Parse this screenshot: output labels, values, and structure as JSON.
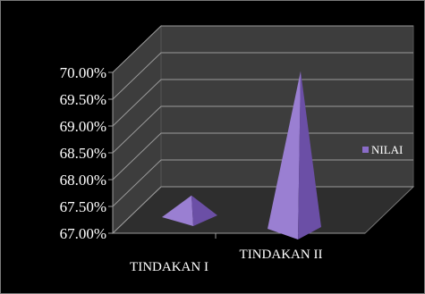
{
  "chart_data": {
    "type": "bar",
    "style": "3d-pyramid",
    "categories": [
      "TINDAKAN I",
      "TINDAKAN II"
    ],
    "series": [
      {
        "name": "NILAI",
        "values": [
          67.6,
          69.92
        ]
      }
    ],
    "ylim": [
      67.0,
      70.0
    ],
    "yticks": [
      "67.00%",
      "67.50%",
      "68.00%",
      "68.50%",
      "69.00%",
      "69.50%",
      "70.00%"
    ],
    "title": "",
    "xlabel": "",
    "ylabel": "",
    "grid": true,
    "legend_position": "right",
    "colors": {
      "background": "#000000",
      "wall": "#3d3d3d",
      "floor": "#2e2e2e",
      "gridline": "#9a9a9a",
      "pyramid_front": "#9a7fd2",
      "pyramid_side": "#6b4fa6",
      "legend_swatch": "#8a6cc8",
      "text": "#ffffff"
    }
  }
}
